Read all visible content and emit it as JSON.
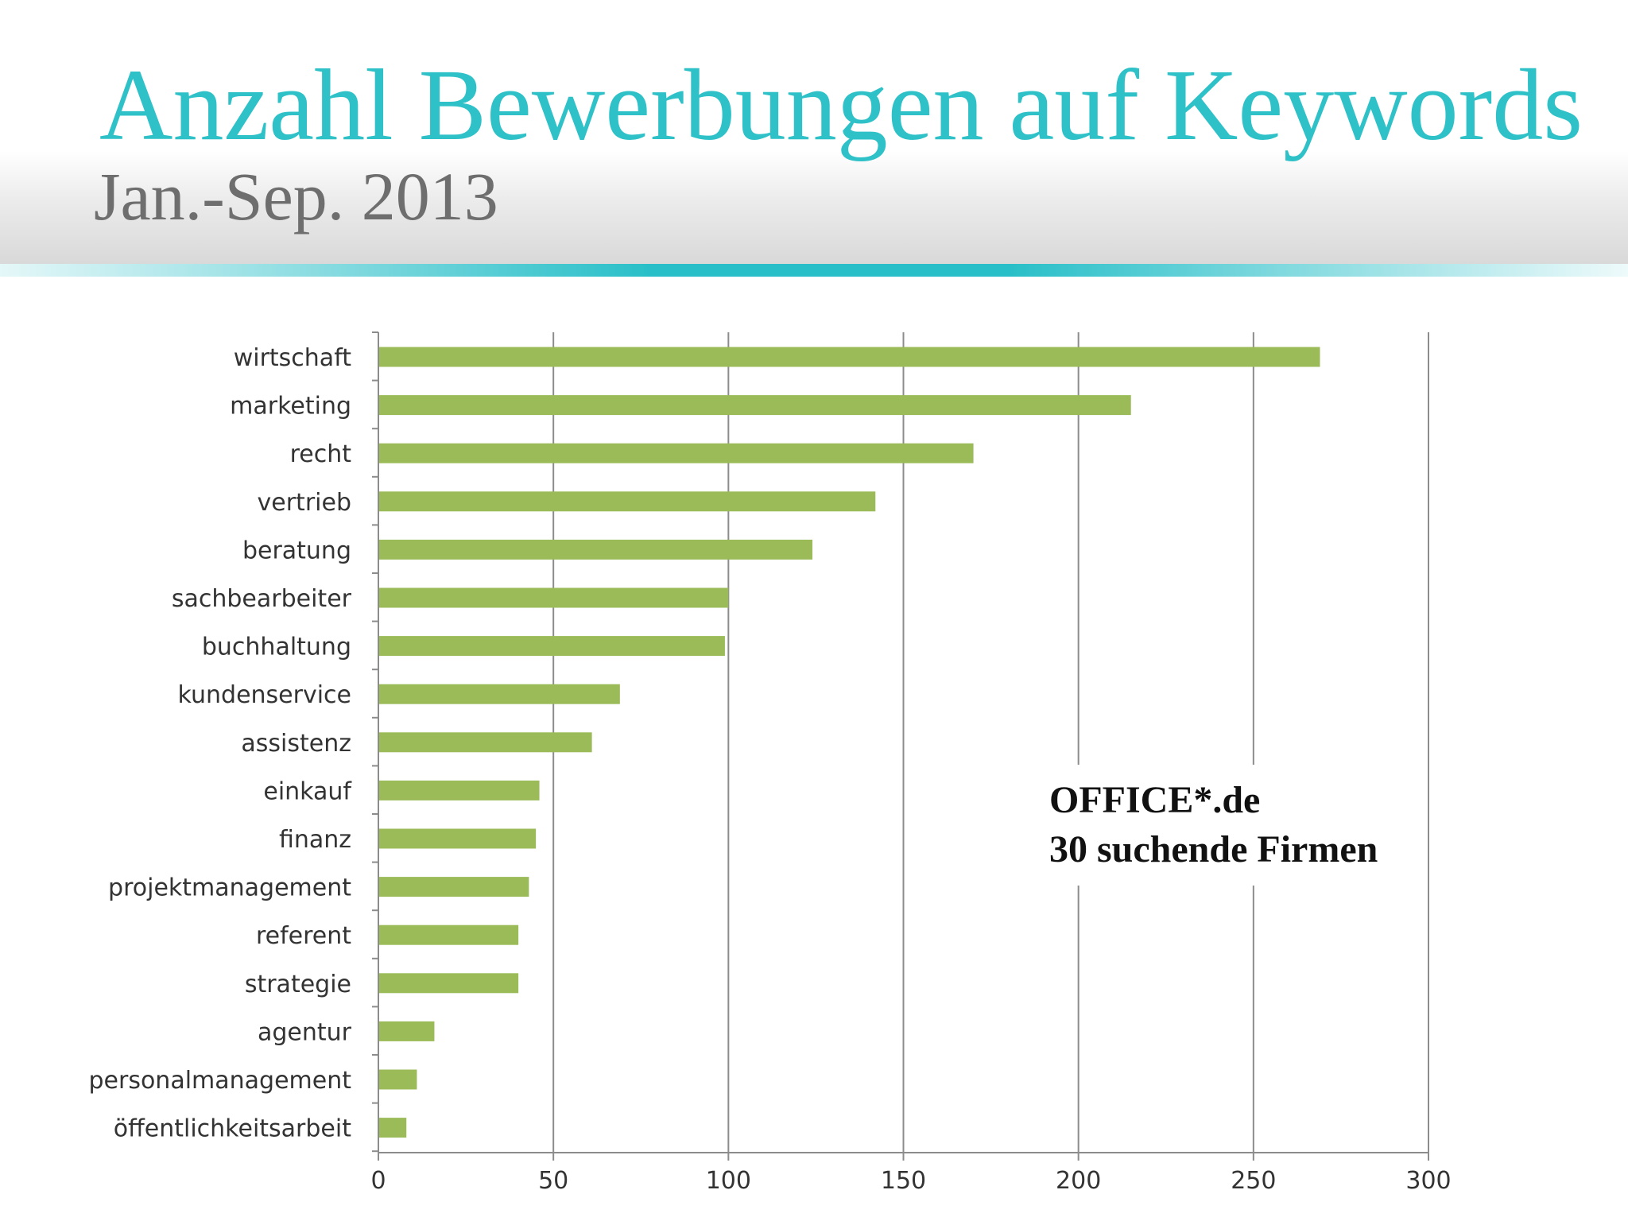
{
  "slide": {
    "title": "Anzahl Bewerbungen auf Keywords",
    "subtitle": "Jan.-Sep. 2013",
    "accent_color": "#2fc1c8"
  },
  "annotation": {
    "line1": "OFFICE*.de",
    "line2": "30 suchende Firmen"
  },
  "chart_data": {
    "type": "bar",
    "orientation": "horizontal",
    "categories": [
      "wirtschaft",
      "marketing",
      "recht",
      "vertrieb",
      "beratung",
      "sachbearbeiter",
      "buchhaltung",
      "kundenservice",
      "assistenz",
      "einkauf",
      "finanz",
      "projektmanagement",
      "referent",
      "strategie",
      "agentur",
      "personalmanagement",
      "öffentlichkeitsarbeit"
    ],
    "values": [
      269,
      215,
      170,
      142,
      124,
      100,
      99,
      69,
      61,
      46,
      45,
      43,
      40,
      40,
      16,
      11,
      8
    ],
    "xlim": [
      0,
      300
    ],
    "xticks": [
      0,
      50,
      100,
      150,
      200,
      250,
      300
    ],
    "grid": "vertical",
    "bar_color": "#9bbb59",
    "title": "",
    "xlabel": "",
    "ylabel": ""
  }
}
